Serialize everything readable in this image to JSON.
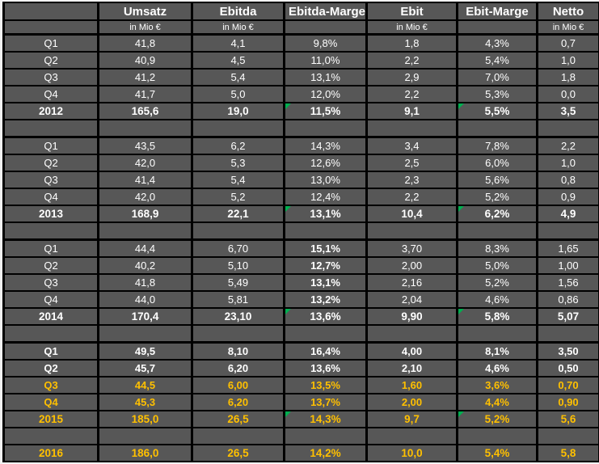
{
  "colors": {
    "cell_bg": "#575757",
    "grid": "#000000",
    "text": "#ffffff",
    "accent_orange": "#ffc000",
    "indicator_green": "#00b050",
    "frame": "#f2f2f2"
  },
  "header": {
    "columns": [
      {
        "label": "",
        "unit": ""
      },
      {
        "label": "Umsatz",
        "unit": "in Mio €"
      },
      {
        "label": "Ebitda",
        "unit": "in Mio €"
      },
      {
        "label": "Ebitda-Marge",
        "unit": ""
      },
      {
        "label": "Ebit",
        "unit": "in Mio €"
      },
      {
        "label": "Ebit-Marge",
        "unit": ""
      },
      {
        "label": "Netto",
        "unit": "in Mio €"
      }
    ]
  },
  "rows": [
    {
      "label": "Q1",
      "values": [
        "41,8",
        "4,1",
        "9,8%",
        "1,8",
        "4,3%",
        "0,7"
      ]
    },
    {
      "label": "Q2",
      "values": [
        "40,9",
        "4,5",
        "11,0%",
        "2,2",
        "5,4%",
        "1,0"
      ]
    },
    {
      "label": "Q3",
      "values": [
        "41,2",
        "5,4",
        "13,1%",
        "2,9",
        "7,0%",
        "1,8"
      ]
    },
    {
      "label": "Q4",
      "values": [
        "41,7",
        "5,0",
        "12,0%",
        "2,2",
        "5,3%",
        "0,0"
      ]
    },
    {
      "label": "2012",
      "values": [
        "165,6",
        "19,0",
        "11,5%",
        "9,1",
        "5,5%",
        "3,5"
      ],
      "cls": "year",
      "markers": [
        2,
        4
      ]
    },
    {
      "blank": true
    },
    {
      "label": "Q1",
      "values": [
        "43,5",
        "6,2",
        "14,3%",
        "3,4",
        "7,8%",
        "2,2"
      ],
      "section_start": true
    },
    {
      "label": "Q2",
      "values": [
        "42,0",
        "5,3",
        "12,6%",
        "2,5",
        "6,0%",
        "1,0"
      ]
    },
    {
      "label": "Q3",
      "values": [
        "41,4",
        "5,4",
        "13,0%",
        "2,3",
        "5,6%",
        "0,8"
      ]
    },
    {
      "label": "Q4",
      "values": [
        "42,0",
        "5,2",
        "12,4%",
        "2,2",
        "5,2%",
        "0,9"
      ]
    },
    {
      "label": "2013",
      "values": [
        "168,9",
        "22,1",
        "13,1%",
        "10,4",
        "6,2%",
        "4,9"
      ],
      "cls": "year",
      "markers": [
        2,
        4
      ]
    },
    {
      "blank": true
    },
    {
      "label": "Q1",
      "values": [
        "44,4",
        "6,70",
        "15,1%",
        "3,70",
        "8,3%",
        "1,65"
      ],
      "section_start": true,
      "bold_cols": [
        2
      ]
    },
    {
      "label": "Q2",
      "values": [
        "40,2",
        "5,10",
        "12,7%",
        "2,00",
        "5,0%",
        "1,00"
      ],
      "bold_cols": [
        2
      ]
    },
    {
      "label": "Q3",
      "values": [
        "41,8",
        "5,49",
        "13,1%",
        "2,16",
        "5,2%",
        "1,56"
      ],
      "bold_cols": [
        2
      ]
    },
    {
      "label": "Q4",
      "values": [
        "44,0",
        "5,81",
        "13,2%",
        "2,04",
        "4,6%",
        "0,86"
      ],
      "bold_cols": [
        2
      ]
    },
    {
      "label": "2014",
      "values": [
        "170,4",
        "23,10",
        "13,6%",
        "9,90",
        "5,8%",
        "5,07"
      ],
      "cls": "year",
      "markers": [
        2,
        4
      ]
    },
    {
      "blank": true
    },
    {
      "label": "Q1",
      "values": [
        "49,5",
        "8,10",
        "16,4%",
        "4,00",
        "8,1%",
        "3,50"
      ],
      "cls": "hl",
      "section_start": true
    },
    {
      "label": "Q2",
      "values": [
        "45,7",
        "6,20",
        "13,6%",
        "2,10",
        "4,6%",
        "0,50"
      ],
      "cls": "hl"
    },
    {
      "label": "Q3",
      "values": [
        "44,5",
        "6,00",
        "13,5%",
        "1,60",
        "3,6%",
        "0,70"
      ],
      "cls": "hl orange"
    },
    {
      "label": "Q4",
      "values": [
        "45,3",
        "6,20",
        "13,7%",
        "2,00",
        "4,4%",
        "0,90"
      ],
      "cls": "hl orange"
    },
    {
      "label": "2015",
      "values": [
        "185,0",
        "26,5",
        "14,3%",
        "9,7",
        "5,2%",
        "5,6"
      ],
      "cls": "year orange",
      "markers": [
        2,
        4
      ]
    },
    {
      "blank": true
    },
    {
      "label": "2016",
      "values": [
        "186,0",
        "26,5",
        "14,2%",
        "10,0",
        "5,4%",
        "5,8"
      ],
      "cls": "year orange"
    }
  ]
}
